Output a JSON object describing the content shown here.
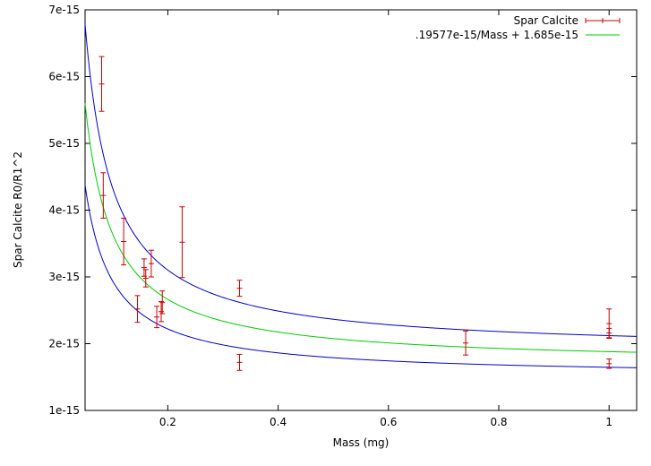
{
  "chart_data": {
    "type": "scatter",
    "title": "",
    "xlabel": "Mass (mg)",
    "ylabel": "Spar Calcite R0/R1^2",
    "xlim": [
      0.05,
      1.05
    ],
    "ylim": [
      1e-15,
      7e-15
    ],
    "x_ticks": [
      0.2,
      0.4,
      0.6,
      0.8,
      1
    ],
    "x_tick_labels": [
      "0.2",
      "0.4",
      "0.6",
      "0.8",
      "1"
    ],
    "y_ticks": [
      1e-15,
      2e-15,
      3e-15,
      4e-15,
      5e-15,
      6e-15,
      7e-15
    ],
    "y_tick_labels": [
      "1e-15",
      "2e-15",
      "3e-15",
      "4e-15",
      "5e-15",
      "6e-15",
      "7e-15"
    ],
    "grid": false,
    "legend_position": "top-right",
    "series": [
      {
        "name": "Spar Calcite",
        "kind": "errorbar",
        "color": "#cc0000",
        "points": [
          {
            "x": 0.08,
            "y": 5.89e-15,
            "yerr": 4.1e-16
          },
          {
            "x": 0.083,
            "y": 4.22e-15,
            "yerr": 3.4e-16
          },
          {
            "x": 0.12,
            "y": 3.53e-15,
            "yerr": 3.5e-16
          },
          {
            "x": 0.145,
            "y": 2.52e-15,
            "yerr": 2e-16
          },
          {
            "x": 0.157,
            "y": 3.14e-15,
            "yerr": 1.3e-16
          },
          {
            "x": 0.16,
            "y": 2.98e-15,
            "yerr": 1.3e-16
          },
          {
            "x": 0.17,
            "y": 3.2e-15,
            "yerr": 2e-16
          },
          {
            "x": 0.18,
            "y": 2.4e-15,
            "yerr": 1.6e-16
          },
          {
            "x": 0.188,
            "y": 2.48e-15,
            "yerr": 1.5e-16
          },
          {
            "x": 0.19,
            "y": 2.62e-15,
            "yerr": 1.7e-16
          },
          {
            "x": 0.226,
            "y": 3.52e-15,
            "yerr": 5.3e-16
          },
          {
            "x": 0.33,
            "y": 2.83e-15,
            "yerr": 1.2e-16
          },
          {
            "x": 0.33,
            "y": 1.72e-15,
            "yerr": 1.2e-16
          },
          {
            "x": 0.74,
            "y": 2.01e-15,
            "yerr": 1.8e-16
          },
          {
            "x": 1.0,
            "y": 2.3e-15,
            "yerr": 2.2e-16
          },
          {
            "x": 1.0,
            "y": 2.16e-15,
            "yerr": 7e-17
          },
          {
            "x": 1.0,
            "y": 1.7e-15,
            "yerr": 7e-17
          }
        ]
      },
      {
        "name": ".19577e-15/Mass + 1.685e-15",
        "kind": "function",
        "color": "#00cc00",
        "a": 1.9577e-16,
        "b": 1.685e-15
      },
      {
        "name": "",
        "kind": "function",
        "color": "#0000cc",
        "a": 2.455e-16,
        "b": 1.875e-15
      },
      {
        "name": "",
        "kind": "function",
        "color": "#0000cc",
        "a": 1.435e-16,
        "b": 1.503e-15
      }
    ]
  }
}
